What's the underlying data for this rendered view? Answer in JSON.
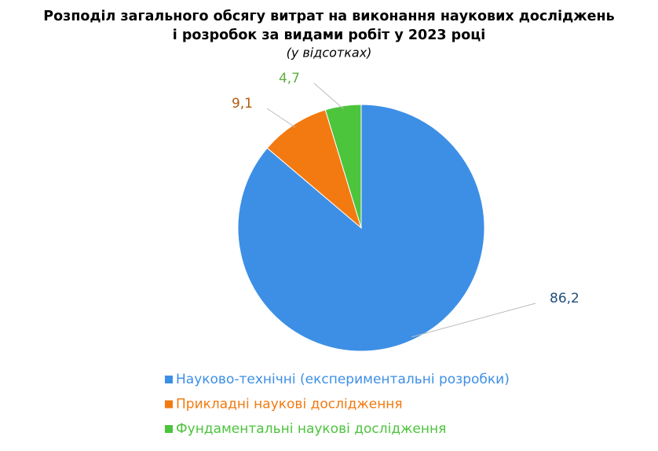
{
  "chart_data": {
    "type": "pie",
    "title": [
      "Розподіл загального обсягу витрат на виконання наукових досліджень",
      "і розробок за видами робіт у 2023 році"
    ],
    "subtitle": "(у відсотках)",
    "categories": [
      "Науково-технічні (експериментальні розробки)",
      "Прикладні наукові дослідження",
      "Фундаментальні наукові дослідження"
    ],
    "values": [
      86.2,
      9.1,
      4.7
    ],
    "value_labels": [
      "86,2",
      "9,1",
      "4,7"
    ],
    "colors": [
      "#3d8fe6",
      "#f27a10",
      "#4cc43c"
    ],
    "label_colors": [
      "#1f4e79",
      "#b35a0c",
      "#5fb044"
    ],
    "legend_position": "bottom"
  }
}
